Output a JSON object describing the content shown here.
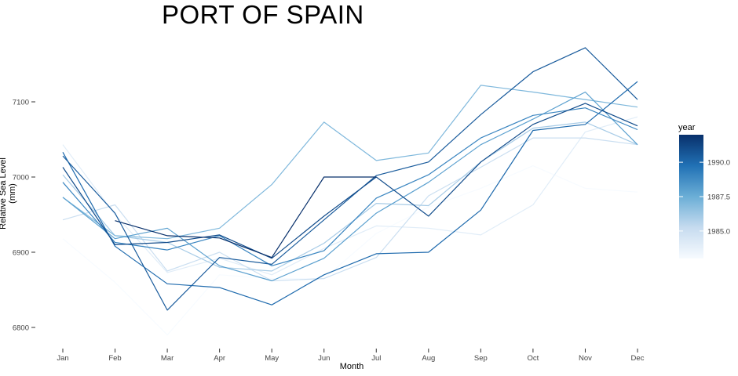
{
  "chart_data": {
    "type": "line",
    "title": "PORT OF SPAIN",
    "xlabel": "Month",
    "ylabel": "Relative Sea Level (mm)",
    "categories": [
      "Jan",
      "Feb",
      "Mar",
      "Apr",
      "May",
      "Jun",
      "Jul",
      "Aug",
      "Sep",
      "Oct",
      "Nov",
      "Dec"
    ],
    "yticks": [
      6800,
      6900,
      7000,
      7100
    ],
    "ylim": [
      6775,
      7150
    ],
    "grid": false,
    "legend": {
      "title": "year",
      "position": "right",
      "type": "colorbar",
      "ticks": [
        1985.0,
        1987.5,
        1990.0
      ],
      "range": [
        1983,
        1992
      ],
      "colors": [
        "#f7fbff",
        "#c6dbef",
        "#6baed6",
        "#2171b5",
        "#08306b"
      ]
    },
    "series": [
      {
        "year": 1983,
        "values": [
          6918,
          6860,
          6790,
          6870,
          6865,
          6865,
          6925,
          6960,
          6985,
          7015,
          6985,
          6980
        ]
      },
      {
        "year": 1984,
        "values": [
          7043,
          6950,
          6873,
          6892,
          6870,
          6905,
          6935,
          6932,
          6923,
          6963,
          7060,
          7080
        ]
      },
      {
        "year": 1985,
        "values": [
          6943,
          6963,
          6875,
          6900,
          6862,
          6865,
          6893,
          6975,
          7013,
          7052,
          7052,
          7043
        ]
      },
      {
        "year": 1986,
        "values": [
          7003,
          6922,
          6913,
          6880,
          6875,
          6912,
          6965,
          6962,
          7020,
          7065,
          7073,
          7043
        ]
      },
      {
        "year": 1987,
        "values": [
          6973,
          6922,
          6918,
          6932,
          6990,
          7073,
          7022,
          7032,
          7122,
          7113,
          7103,
          7093
        ]
      },
      {
        "year": 1988,
        "values": [
          6973,
          6918,
          6932,
          6882,
          6862,
          6892,
          6952,
          6993,
          7043,
          7077,
          7113,
          7043
        ]
      },
      {
        "year": 1989,
        "values": [
          6993,
          6913,
          6903,
          6922,
          6882,
          6902,
          6972,
          7003,
          7052,
          7082,
          7092,
          7063
        ]
      },
      {
        "year": 1990,
        "values": [
          7033,
          6908,
          6858,
          6853,
          6830,
          6870,
          6898,
          6900,
          6956,
          7062,
          7070,
          7127
        ]
      },
      {
        "year": 1990.5,
        "values": [
          7028,
          6952,
          6823,
          6893,
          6884,
          6943,
          7002,
          7020,
          7083,
          7140,
          7172,
          7103
        ]
      },
      {
        "year": 1991,
        "values": [
          7013,
          6910,
          6913,
          6923,
          6892,
          6948,
          7000,
          6948,
          7020,
          7070,
          7098,
          7068
        ]
      },
      {
        "year": 1992,
        "values": [
          null,
          6942,
          6922,
          6919,
          6893,
          7000,
          7000,
          null,
          null,
          null,
          null,
          null
        ]
      }
    ]
  }
}
